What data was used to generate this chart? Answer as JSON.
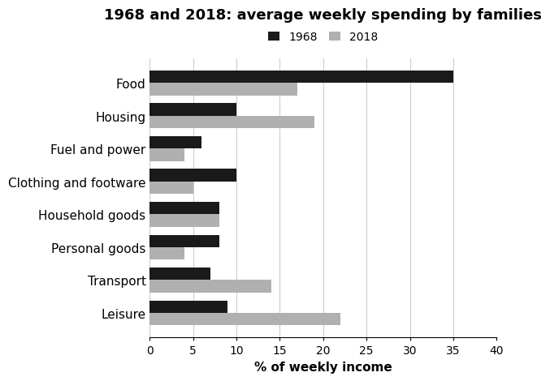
{
  "title": "1968 and 2018: average weekly spending by families",
  "categories": [
    "Food",
    "Housing",
    "Fuel and power",
    "Clothing and footware",
    "Household goods",
    "Personal goods",
    "Transport",
    "Leisure"
  ],
  "values_1968": [
    35,
    10,
    6,
    10,
    8,
    8,
    7,
    9
  ],
  "values_2018": [
    17,
    19,
    4,
    5,
    8,
    4,
    14,
    22
  ],
  "color_1968": "#1a1a1a",
  "color_2018": "#b0b0b0",
  "xlabel": "% of weekly income",
  "legend_labels": [
    "1968",
    "2018"
  ],
  "xlim": [
    0,
    40
  ],
  "xticks": [
    0,
    5,
    10,
    15,
    20,
    25,
    30,
    35,
    40
  ],
  "bar_height": 0.38,
  "title_fontsize": 13,
  "label_fontsize": 11,
  "tick_fontsize": 10,
  "background_color": "#ffffff"
}
